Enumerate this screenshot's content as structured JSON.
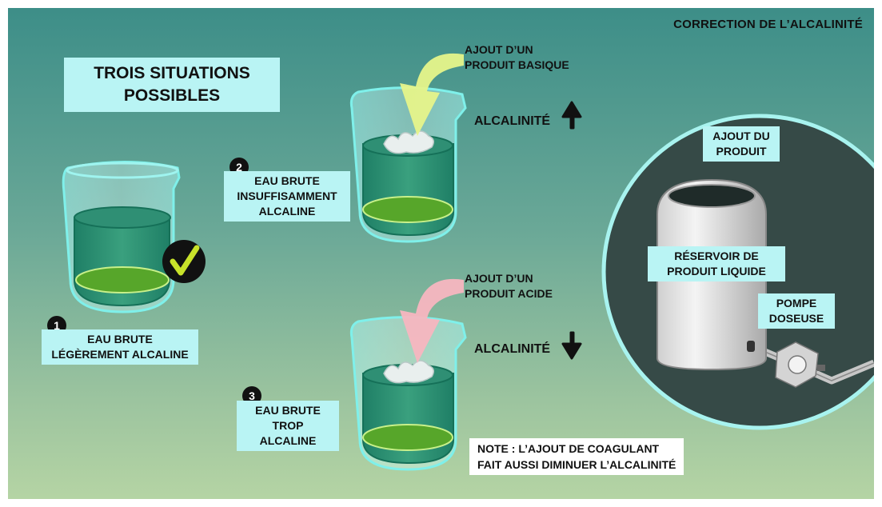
{
  "title": "CORRECTION DE L’ALCALINITÉ",
  "heading": [
    "TROIS SITUATIONS",
    "POSSIBLES"
  ],
  "situations": [
    {
      "number": "1",
      "lines": [
        "EAU BRUTE",
        "LÉGÈREMENT ALCALINE"
      ]
    },
    {
      "number": "2",
      "lines": [
        "EAU BRUTE",
        "INSUFFISAMMENT",
        "ALCALINE"
      ]
    },
    {
      "number": "3",
      "lines": [
        "EAU BRUTE",
        "TROP ALCALINE"
      ]
    }
  ],
  "additions": {
    "basic": [
      "AJOUT D’UN",
      "PRODUIT BASIQUE"
    ],
    "acid": [
      "AJOUT D’UN",
      "PRODUIT ACIDE"
    ]
  },
  "alkalinity_label": "ALCALINITÉ",
  "note": [
    "NOTE : L’AJOUT DE COAGULANT",
    "FAIT AUSSI DIMINUER L’ALCALINITÉ"
  ],
  "equipment": {
    "product_addition": [
      "AJOUT DU",
      "PRODUIT"
    ],
    "tank": [
      "RÉSERVOIR DE",
      "PRODUIT LIQUIDE"
    ],
    "pump": [
      "POMPE",
      "DOSEUSE"
    ]
  },
  "colors": {
    "label_bg": "#b9f4f4",
    "water": "#2a8b6e",
    "arrow_basic": "#e6f48a",
    "arrow_acid": "#f7b6c0",
    "check": "#c8e22a"
  }
}
